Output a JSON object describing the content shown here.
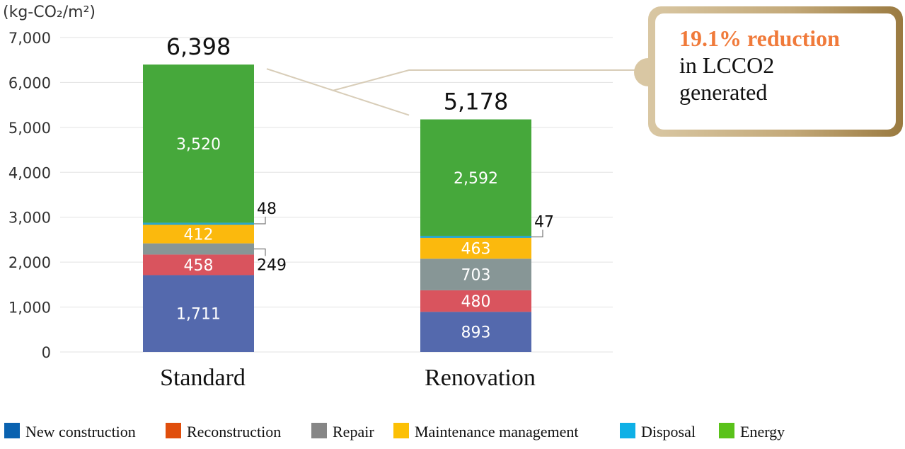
{
  "chart_data": {
    "type": "bar",
    "stacked": true,
    "unit_label": "(kg-CO₂/m²)",
    "categories": [
      "Standard",
      "Renovation"
    ],
    "totals": [
      "6,398",
      "5,178"
    ],
    "ylim": [
      0,
      7000
    ],
    "yticks": [
      0,
      1000,
      2000,
      3000,
      4000,
      5000,
      6000,
      7000
    ],
    "ytick_labels": [
      "0",
      "1,000",
      "2,000",
      "3,000",
      "4,000",
      "5,000",
      "6,000",
      "7,000"
    ],
    "grid": true,
    "legend_position": "bottom",
    "series": [
      {
        "name": "New construction",
        "color": "#5469ad",
        "legend_color": "#0a62b0",
        "values": [
          1711,
          893
        ],
        "labels": [
          "1,711",
          "893"
        ]
      },
      {
        "name": "Reconstruction",
        "color": "#d9545e",
        "legend_color": "#e04e0c",
        "values": [
          458,
          480
        ],
        "labels": [
          "458",
          "480"
        ]
      },
      {
        "name": "Repair",
        "color": "#879696",
        "legend_color": "#868686",
        "values": [
          249,
          703
        ],
        "labels": [
          "249",
          "703"
        ]
      },
      {
        "name": "Maintenance management",
        "color": "#fbb90d",
        "legend_color": "#fcc005",
        "values": [
          412,
          463
        ],
        "labels": [
          "412",
          "463"
        ]
      },
      {
        "name": "Disposal",
        "color": "#2aa6c9",
        "legend_color": "#0fb0e6",
        "values": [
          48,
          47
        ],
        "labels": [
          "48",
          "47"
        ]
      },
      {
        "name": "Energy",
        "color": "#46a83b",
        "legend_color": "#5ac21a",
        "values": [
          3520,
          2592
        ],
        "labels": [
          "3,520",
          "2,592"
        ]
      }
    ]
  },
  "callout": {
    "highlight": "19.1% reduction",
    "line1": "in LCCO2",
    "line2": "generated",
    "highlight_color": "#f07a3a"
  }
}
